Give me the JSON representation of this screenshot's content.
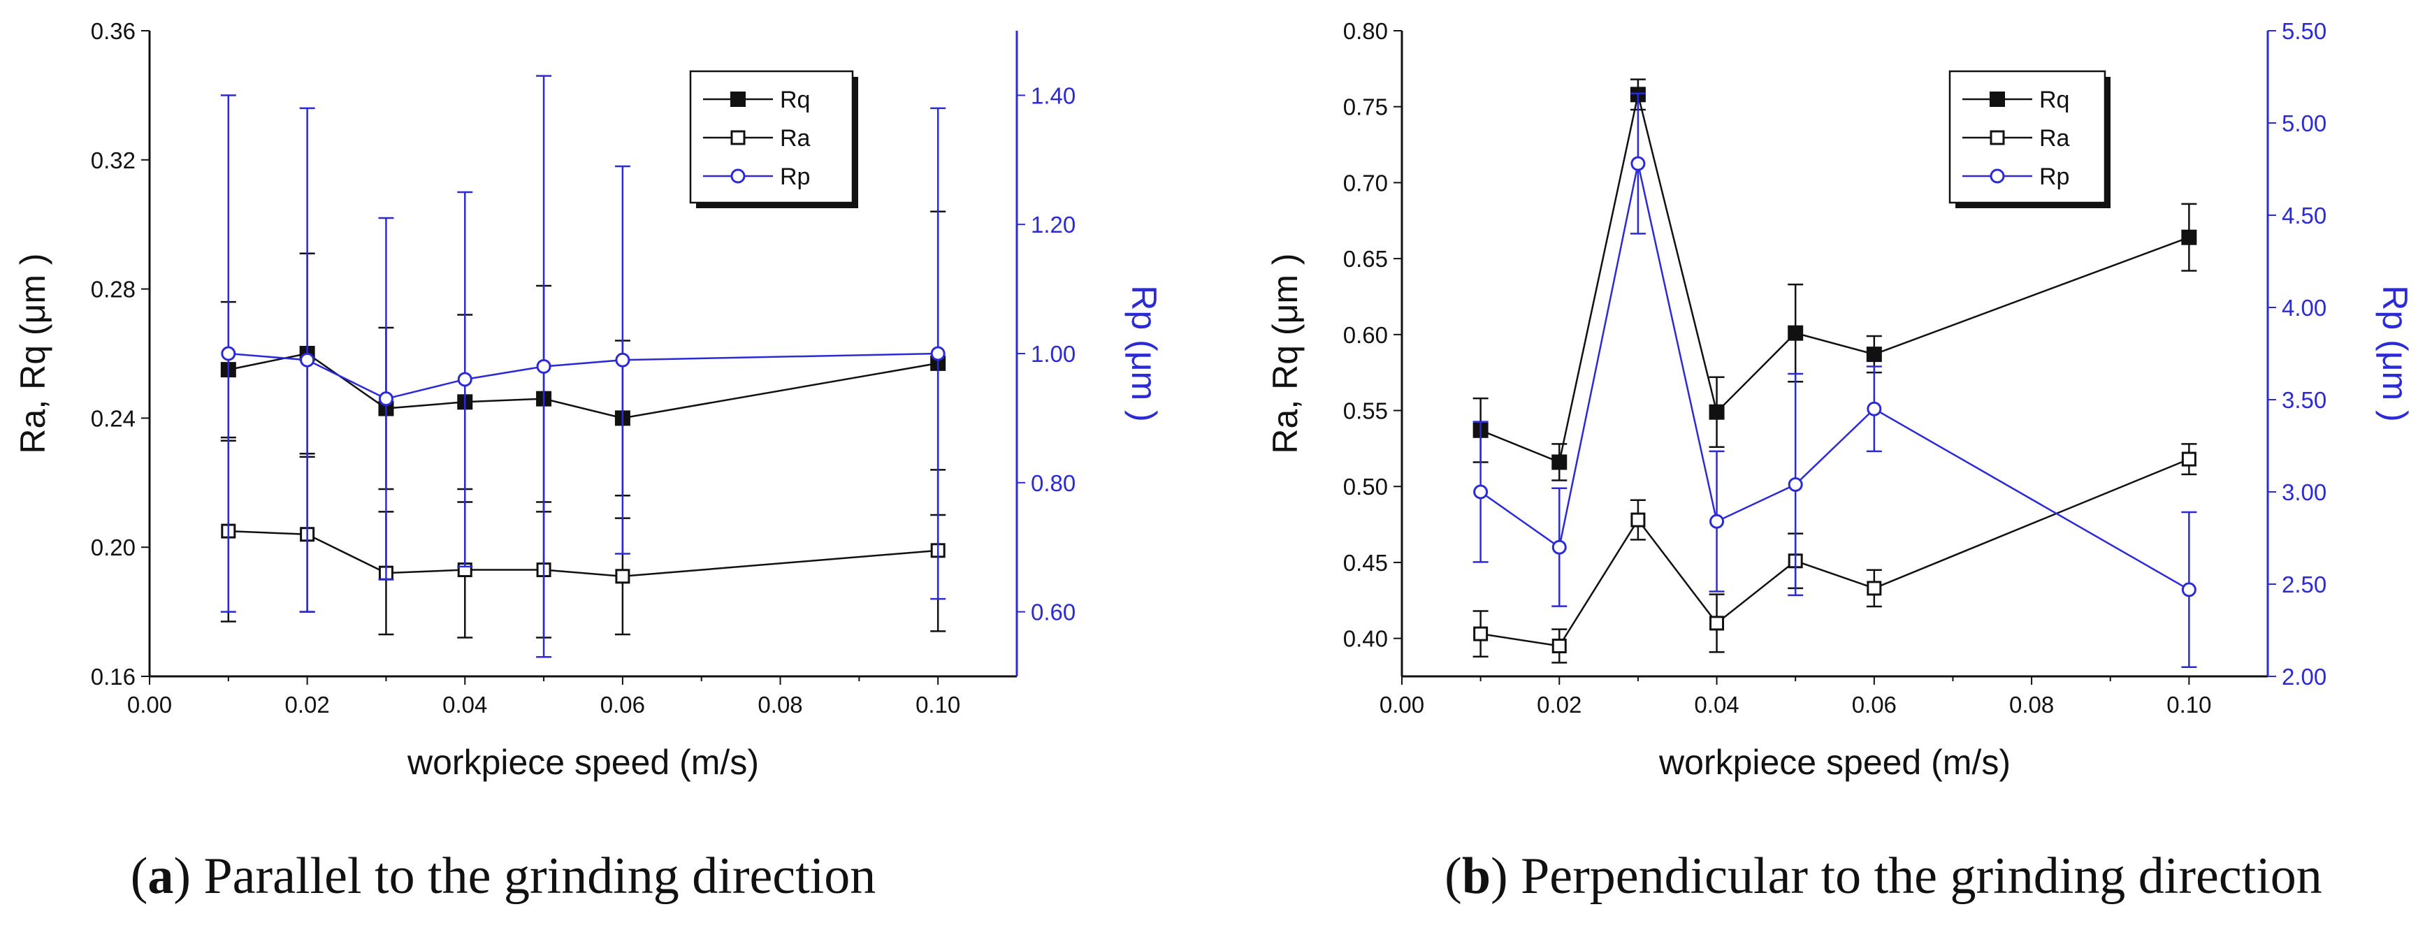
{
  "chart_data": [
    {
      "type": "line",
      "panel": "a",
      "caption_prefix": "(",
      "caption_letter": "a",
      "caption_suffix": ") Parallel to the grinding direction",
      "xlabel": "workpiece speed (m/s)",
      "ylabel": "Ra, Rq (μm )",
      "y2label": "Rp (μm )",
      "xlim": [
        0,
        0.11
      ],
      "xticks": [
        0,
        0.02,
        0.04,
        0.06,
        0.08,
        0.1
      ],
      "xtick_labels": [
        "0.00",
        "0.02",
        "0.04",
        "0.06",
        "0.08",
        "0.10"
      ],
      "ylim": [
        0.16,
        0.36
      ],
      "yticks": [
        0.16,
        0.2,
        0.24,
        0.28,
        0.32,
        0.36
      ],
      "ytick_labels": [
        "0.16",
        "0.20",
        "0.24",
        "0.28",
        "0.32",
        "0.36"
      ],
      "y2lim": [
        0.5,
        1.5
      ],
      "y2ticks": [
        0.6,
        0.8,
        1.0,
        1.2,
        1.4
      ],
      "y2tick_labels": [
        "0.60",
        "0.80",
        "1.00",
        "1.20",
        "1.40"
      ],
      "legend_position": "top-right",
      "x": [
        0.01,
        0.02,
        0.03,
        0.04,
        0.05,
        0.06,
        0.1
      ],
      "series": [
        {
          "name": "Rq",
          "axis": "left",
          "marker": "filled-square",
          "color": "#111111",
          "values": [
            0.255,
            0.26,
            0.243,
            0.245,
            0.246,
            0.24,
            0.257
          ],
          "err": [
            0.021,
            0.031,
            0.025,
            0.027,
            0.035,
            0.024,
            0.047
          ]
        },
        {
          "name": "Ra",
          "axis": "left",
          "marker": "open-square",
          "color": "#111111",
          "values": [
            0.205,
            0.204,
            0.192,
            0.193,
            0.193,
            0.191,
            0.199
          ],
          "err": [
            0.028,
            0.024,
            0.019,
            0.021,
            0.021,
            0.018,
            0.025
          ]
        },
        {
          "name": "Rp",
          "axis": "right",
          "marker": "open-circle",
          "color": "#2b2bd6",
          "values": [
            1.0,
            0.99,
            0.93,
            0.96,
            0.98,
            0.99,
            1.0
          ],
          "err": [
            0.4,
            0.39,
            0.28,
            0.29,
            0.45,
            0.3,
            0.38
          ]
        }
      ]
    },
    {
      "type": "line",
      "panel": "b",
      "caption_prefix": "(",
      "caption_letter": "b",
      "caption_suffix": ") Perpendicular to the grinding direction",
      "xlabel": "workpiece speed (m/s)",
      "ylabel": "Ra, Rq (μm )",
      "y2label": "Rp (μm )",
      "xlim": [
        0,
        0.11
      ],
      "xticks": [
        0,
        0.02,
        0.04,
        0.06,
        0.08,
        0.1
      ],
      "xtick_labels": [
        "0.00",
        "0.02",
        "0.04",
        "0.06",
        "0.08",
        "0.10"
      ],
      "ylim": [
        0.375,
        0.8
      ],
      "yticks": [
        0.4,
        0.45,
        0.5,
        0.55,
        0.6,
        0.65,
        0.7,
        0.75,
        0.8
      ],
      "ytick_labels": [
        "0.40",
        "0.45",
        "0.50",
        "0.55",
        "0.60",
        "0.65",
        "0.70",
        "0.75",
        "0.80"
      ],
      "y2lim": [
        2.0,
        5.5
      ],
      "y2ticks": [
        2.0,
        2.5,
        3.0,
        3.5,
        4.0,
        4.5,
        5.0,
        5.5
      ],
      "y2tick_labels": [
        "2.00",
        "2.50",
        "3.00",
        "3.50",
        "4.00",
        "4.50",
        "5.00",
        "5.50"
      ],
      "legend_position": "top-right",
      "x": [
        0.01,
        0.02,
        0.03,
        0.04,
        0.05,
        0.06,
        0.1
      ],
      "series": [
        {
          "name": "Rq",
          "axis": "left",
          "marker": "filled-square",
          "color": "#111111",
          "values": [
            0.537,
            0.516,
            0.758,
            0.549,
            0.601,
            0.587,
            0.664
          ],
          "err": [
            0.021,
            0.012,
            0.01,
            0.023,
            0.032,
            0.012,
            0.022
          ]
        },
        {
          "name": "Ra",
          "axis": "left",
          "marker": "open-square",
          "color": "#111111",
          "values": [
            0.403,
            0.395,
            0.478,
            0.41,
            0.451,
            0.433,
            0.518
          ],
          "err": [
            0.015,
            0.011,
            0.013,
            0.019,
            0.018,
            0.012,
            0.01
          ]
        },
        {
          "name": "Rp",
          "axis": "right",
          "marker": "open-circle",
          "color": "#2b2bd6",
          "values": [
            3.0,
            2.7,
            4.78,
            2.84,
            3.04,
            3.45,
            2.47
          ],
          "err": [
            0.38,
            0.32,
            0.38,
            0.38,
            0.6,
            0.23,
            0.42
          ]
        }
      ]
    }
  ]
}
